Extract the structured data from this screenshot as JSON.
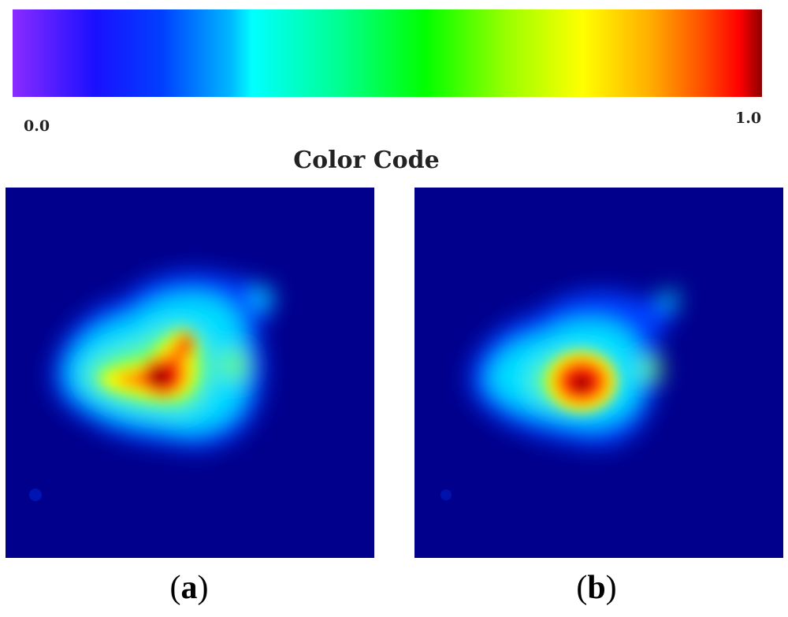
{
  "colorbar": {
    "min_label": "0.0",
    "max_label": "1.0",
    "title": "Color Code",
    "colormap": "jet",
    "low_color": "#00008d",
    "high_color": "#8c0000"
  },
  "panels": [
    {
      "label_open": "(",
      "letter": "a",
      "label_close": ")"
    },
    {
      "label_open": "(",
      "letter": "b",
      "label_close": ")"
    }
  ]
}
